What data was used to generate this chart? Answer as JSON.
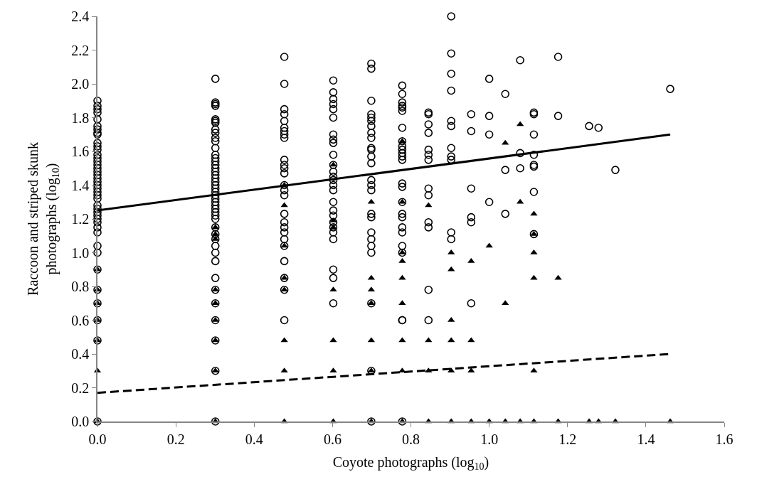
{
  "chart_data": {
    "type": "scatter",
    "xlabel": "Coyote photographs (log$_{10}$)",
    "ylabel": "Raccoon and striped skunk photographs (log$_{10}$)",
    "xlim": [
      0,
      1.6
    ],
    "ylim": [
      0,
      2.4
    ],
    "xticks": [
      {
        "value": 0,
        "label": "0.0"
      },
      {
        "value": 0.2,
        "label": "0.2"
      },
      {
        "value": 0.4,
        "label": "0.4"
      },
      {
        "value": 0.6,
        "label": "0.6"
      },
      {
        "value": 0.8,
        "label": "0.8"
      },
      {
        "value": 1.0,
        "label": "1.0"
      },
      {
        "value": 1.2,
        "label": "1.2"
      },
      {
        "value": 1.4,
        "label": "1.4"
      },
      {
        "value": 1.6,
        "label": "1.6"
      }
    ],
    "yticks": [
      {
        "value": 0,
        "label": "0.0"
      },
      {
        "value": 0.2,
        "label": "0.2"
      },
      {
        "value": 0.4,
        "label": "0.4"
      },
      {
        "value": 0.6,
        "label": "0.6"
      },
      {
        "value": 0.8,
        "label": "0.8"
      },
      {
        "value": 1.0,
        "label": "1.0"
      },
      {
        "value": 1.2,
        "label": "1.2"
      },
      {
        "value": 1.4,
        "label": "1.4"
      },
      {
        "value": 1.6,
        "label": "1.6"
      },
      {
        "value": 1.8,
        "label": "1.8"
      },
      {
        "value": 2.0,
        "label": "2.0"
      },
      {
        "value": 2.2,
        "label": "2.2"
      },
      {
        "value": 2.4,
        "label": "2.4"
      }
    ],
    "series": [
      {
        "type": "scatter",
        "marker": "circle",
        "color": "#000000",
        "x": [
          0,
          0,
          0,
          0,
          0,
          0,
          0,
          0,
          0,
          0,
          0,
          0,
          0,
          0,
          0,
          0,
          0,
          0,
          0,
          0,
          0,
          0,
          0,
          0,
          0,
          0,
          0,
          0,
          0,
          0,
          0,
          0,
          0,
          0,
          0,
          0,
          0,
          0,
          0,
          0,
          0,
          0,
          0.301,
          0.301,
          0.301,
          0.301,
          0.301,
          0.301,
          0.301,
          0.301,
          0.301,
          0.301,
          0.301,
          0.301,
          0.301,
          0.301,
          0.301,
          0.301,
          0.301,
          0.301,
          0.301,
          0.301,
          0.301,
          0.301,
          0.301,
          0.301,
          0.301,
          0.301,
          0.301,
          0.301,
          0.301,
          0.301,
          0.301,
          0.301,
          0.301,
          0.301,
          0.301,
          0.301,
          0.301,
          0.301,
          0.301,
          0.301,
          0.301,
          0.301,
          0.301,
          0.301,
          0.301,
          0.477,
          0.477,
          0.477,
          0.477,
          0.477,
          0.477,
          0.477,
          0.477,
          0.477,
          0.477,
          0.477,
          0.477,
          0.477,
          0.477,
          0.477,
          0.477,
          0.477,
          0.477,
          0.477,
          0.477,
          0.477,
          0.477,
          0.477,
          0.477,
          0.477,
          0.477,
          0.602,
          0.602,
          0.602,
          0.602,
          0.602,
          0.602,
          0.602,
          0.602,
          0.602,
          0.602,
          0.602,
          0.602,
          0.602,
          0.602,
          0.602,
          0.602,
          0.602,
          0.602,
          0.602,
          0.602,
          0.602,
          0.602,
          0.602,
          0.602,
          0.602,
          0.602,
          0.699,
          0.699,
          0.699,
          0.699,
          0.699,
          0.699,
          0.699,
          0.699,
          0.699,
          0.699,
          0.699,
          0.699,
          0.699,
          0.699,
          0.699,
          0.699,
          0.699,
          0.699,
          0.699,
          0.699,
          0.699,
          0.699,
          0.699,
          0.699,
          0.699,
          0.778,
          0.778,
          0.778,
          0.778,
          0.778,
          0.778,
          0.778,
          0.778,
          0.778,
          0.778,
          0.778,
          0.778,
          0.778,
          0.778,
          0.778,
          0.778,
          0.778,
          0.778,
          0.778,
          0.778,
          0.778,
          0.778,
          0.778,
          0.778,
          0.778,
          0.845,
          0.845,
          0.845,
          0.845,
          0.845,
          0.845,
          0.845,
          0.845,
          0.845,
          0.845,
          0.845,
          0.845,
          0.845,
          0.903,
          0.903,
          0.903,
          0.903,
          0.903,
          0.903,
          0.903,
          0.903,
          0.903,
          0.903,
          0.903,
          0.954,
          0.954,
          0.954,
          0.954,
          0.954,
          0.954,
          1.0,
          1.0,
          1.0,
          1.0,
          1.041,
          1.041,
          1.041,
          1.079,
          1.079,
          1.079,
          1.114,
          1.114,
          1.114,
          1.114,
          1.114,
          1.114,
          1.114,
          1.114,
          1.176,
          1.176,
          1.255,
          1.279,
          1.322,
          1.462
        ],
        "values": [
          1.9,
          1.87,
          1.85,
          1.83,
          1.79,
          1.75,
          1.73,
          1.71,
          1.7,
          1.65,
          1.63,
          1.61,
          1.58,
          1.56,
          1.54,
          1.52,
          1.5,
          1.48,
          1.46,
          1.44,
          1.42,
          1.4,
          1.38,
          1.36,
          1.34,
          1.32,
          1.28,
          1.26,
          1.24,
          1.22,
          1.2,
          1.18,
          1.15,
          1.12,
          1.04,
          1.0,
          0.9,
          0.78,
          0.7,
          0.6,
          0.48,
          0,
          2.03,
          1.89,
          1.88,
          1.87,
          1.79,
          1.78,
          1.77,
          1.73,
          1.71,
          1.68,
          1.66,
          1.62,
          1.58,
          1.56,
          1.54,
          1.52,
          1.5,
          1.48,
          1.46,
          1.44,
          1.42,
          1.4,
          1.38,
          1.36,
          1.34,
          1.32,
          1.3,
          1.28,
          1.26,
          1.24,
          1.22,
          1.2,
          1.15,
          1.11,
          1.08,
          1.04,
          1.0,
          0.95,
          0.85,
          0.78,
          0.7,
          0.6,
          0.48,
          0.3,
          0,
          2.16,
          2.0,
          1.85,
          1.82,
          1.78,
          1.74,
          1.72,
          1.7,
          1.68,
          1.55,
          1.52,
          1.5,
          1.47,
          1.4,
          1.37,
          1.34,
          1.23,
          1.18,
          1.15,
          1.12,
          1.08,
          1.04,
          0.95,
          0.85,
          0.78,
          0.6,
          2.02,
          1.95,
          1.91,
          1.88,
          1.85,
          1.8,
          1.7,
          1.67,
          1.65,
          1.58,
          1.52,
          1.48,
          1.45,
          1.43,
          1.4,
          1.37,
          1.3,
          1.25,
          1.22,
          1.18,
          1.15,
          1.12,
          1.08,
          0.9,
          0.85,
          0.7,
          2.12,
          2.09,
          1.9,
          1.82,
          1.8,
          1.78,
          1.75,
          1.71,
          1.68,
          1.62,
          1.61,
          1.57,
          1.53,
          1.43,
          1.4,
          1.37,
          1.23,
          1.21,
          1.12,
          1.08,
          1.04,
          1.0,
          0.7,
          0.3,
          0,
          1.99,
          1.94,
          1.89,
          1.87,
          1.86,
          1.84,
          1.74,
          1.66,
          1.63,
          1.61,
          1.59,
          1.57,
          1.55,
          1.41,
          1.39,
          1.3,
          1.23,
          1.21,
          1.15,
          1.12,
          1.04,
          1.0,
          0.6,
          0.6,
          0,
          1.83,
          1.82,
          1.76,
          1.71,
          1.61,
          1.58,
          1.55,
          1.38,
          1.34,
          1.18,
          1.15,
          0.78,
          0.6,
          2.4,
          2.18,
          2.06,
          1.96,
          1.78,
          1.75,
          1.62,
          1.57,
          1.55,
          1.12,
          1.08,
          1.82,
          1.72,
          1.38,
          1.21,
          1.18,
          0.7,
          2.03,
          1.81,
          1.7,
          1.3,
          1.94,
          1.49,
          1.23,
          2.14,
          1.59,
          1.5,
          1.83,
          1.82,
          1.7,
          1.58,
          1.52,
          1.51,
          1.36,
          1.11,
          2.16,
          1.81,
          1.75,
          1.74,
          1.49,
          1.97
        ]
      },
      {
        "type": "scatter",
        "marker": "triangle",
        "color": "#000000",
        "x": [
          0,
          0,
          0,
          0,
          0,
          0,
          0,
          0.301,
          0.301,
          0.301,
          0.301,
          0.301,
          0.301,
          0.301,
          0.301,
          0.301,
          0.477,
          0.477,
          0.477,
          0.477,
          0.477,
          0.477,
          0.477,
          0.477,
          0.602,
          0.602,
          0.602,
          0.602,
          0.602,
          0.602,
          0.602,
          0.699,
          0.699,
          0.699,
          0.699,
          0.699,
          0.699,
          0.699,
          0.778,
          0.778,
          0.778,
          0.778,
          0.778,
          0.778,
          0.778,
          0.778,
          0.778,
          0.845,
          0.845,
          0.845,
          0.845,
          0.903,
          0.903,
          0.903,
          0.903,
          0.903,
          0.903,
          0.954,
          0.954,
          0.954,
          0.954,
          1.0,
          1.0,
          1.041,
          1.041,
          1.041,
          1.079,
          1.079,
          1.079,
          1.114,
          1.114,
          1.114,
          1.114,
          1.114,
          1.114,
          1.176,
          1.176,
          1.255,
          1.279,
          1.322,
          1.462
        ],
        "values": [
          0.9,
          0.78,
          0.7,
          0.6,
          0.48,
          0.3,
          0,
          1.15,
          1.11,
          1.08,
          0.78,
          0.7,
          0.6,
          0.48,
          0.3,
          0,
          1.4,
          1.28,
          1.04,
          0.85,
          0.78,
          0.48,
          0.3,
          0,
          1.52,
          1.19,
          1.15,
          0.78,
          0.48,
          0.3,
          0,
          1.3,
          0.85,
          0.78,
          0.7,
          0.48,
          0.3,
          0,
          1.66,
          1.3,
          1.0,
          0.95,
          0.85,
          0.7,
          0.48,
          0.3,
          0,
          1.28,
          0.48,
          0.3,
          0,
          1.0,
          0.9,
          0.6,
          0.48,
          0.3,
          0,
          0.95,
          0.48,
          0.3,
          0,
          1.04,
          0,
          1.65,
          0.7,
          0,
          1.76,
          1.3,
          0,
          1.23,
          1.11,
          1.0,
          0.85,
          0.3,
          0,
          0.85,
          0,
          0,
          0,
          0,
          0
        ]
      },
      {
        "type": "line",
        "line_style": "solid",
        "color": "#000000",
        "x": [
          0,
          1.462
        ],
        "values": [
          1.25,
          1.7
        ]
      },
      {
        "type": "line",
        "line_style": "dashed",
        "color": "#000000",
        "x": [
          0,
          1.462
        ],
        "values": [
          0.17,
          0.4
        ]
      }
    ]
  }
}
